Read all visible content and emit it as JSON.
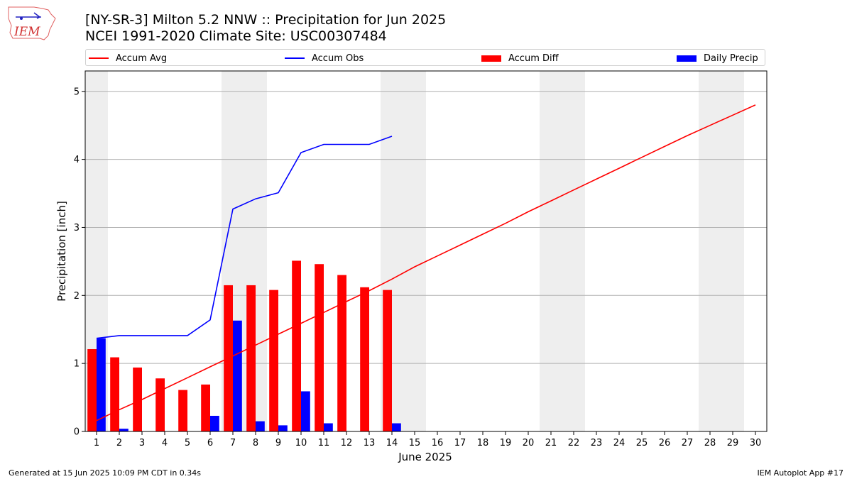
{
  "header": {
    "title": "[NY-SR-3] Milton 5.2 NNW :: Precipitation for Jun 2025",
    "subtitle": "NCEI 1991-2020 Climate Site: USC00307484",
    "logo_text": "IEM"
  },
  "legend": {
    "accum_avg": "Accum Avg",
    "accum_obs": "Accum Obs",
    "accum_diff": "Accum Diff",
    "daily_precip": "Daily Precip"
  },
  "footer": {
    "generated": "Generated at 15 Jun 2025 10:09 PM CDT in 0.34s",
    "app": "IEM Autoplot App #17"
  },
  "colors": {
    "accum_avg": "#ff0000",
    "accum_obs": "#0000ff",
    "accum_diff": "#ff0000",
    "daily_precip": "#0000ff",
    "weekend_shade": "#eeeeee",
    "grid": "#b0b0b0"
  },
  "chart_data": {
    "type": "bar",
    "xlabel": "June 2025",
    "ylabel": "Precipitation [inch]",
    "xlim": [
      0.5,
      30.5
    ],
    "ylim": [
      0,
      5.3
    ],
    "x_ticks": [
      1,
      2,
      3,
      4,
      5,
      6,
      7,
      8,
      9,
      10,
      11,
      12,
      13,
      14,
      15,
      16,
      17,
      18,
      19,
      20,
      21,
      22,
      23,
      24,
      25,
      26,
      27,
      28,
      29,
      30
    ],
    "y_ticks": [
      0,
      1,
      2,
      3,
      4,
      5
    ],
    "grid": "horizontal",
    "legend_position": "top",
    "shaded_weekend_days": [
      1,
      7,
      8,
      14,
      15,
      21,
      22,
      28,
      29
    ],
    "series": [
      {
        "name": "Accum Avg",
        "type": "line",
        "x": [
          1,
          2,
          3,
          4,
          5,
          6,
          7,
          8,
          9,
          10,
          11,
          12,
          13,
          14,
          15,
          16,
          17,
          18,
          19,
          20,
          21,
          22,
          23,
          24,
          25,
          26,
          27,
          28,
          29,
          30
        ],
        "values": [
          0.16,
          0.32,
          0.47,
          0.63,
          0.79,
          0.95,
          1.11,
          1.27,
          1.43,
          1.59,
          1.75,
          1.91,
          2.07,
          2.24,
          2.42,
          2.58,
          2.74,
          2.9,
          3.06,
          3.23,
          3.39,
          3.55,
          3.71,
          3.87,
          4.03,
          4.19,
          4.35,
          4.5,
          4.65,
          4.8
        ]
      },
      {
        "name": "Accum Obs",
        "type": "line",
        "x": [
          1,
          2,
          3,
          4,
          5,
          6,
          7,
          8,
          9,
          10,
          11,
          12,
          13,
          14
        ],
        "values": [
          1.37,
          1.41,
          1.41,
          1.41,
          1.41,
          1.64,
          3.27,
          3.42,
          3.51,
          4.1,
          4.22,
          4.22,
          4.22,
          4.34
        ]
      },
      {
        "name": "Accum Diff",
        "type": "bar",
        "x": [
          1,
          2,
          3,
          4,
          5,
          6,
          7,
          8,
          9,
          10,
          11,
          12,
          13,
          14
        ],
        "values": [
          1.21,
          1.09,
          0.94,
          0.78,
          0.61,
          0.69,
          2.15,
          2.15,
          2.08,
          2.51,
          2.46,
          2.3,
          2.12,
          2.08
        ]
      },
      {
        "name": "Daily Precip",
        "type": "bar",
        "x": [
          1,
          2,
          3,
          4,
          5,
          6,
          7,
          8,
          9,
          10,
          11,
          12,
          13,
          14
        ],
        "values": [
          1.37,
          0.04,
          0,
          0,
          0,
          0.23,
          1.63,
          0.15,
          0.09,
          0.59,
          0.12,
          0,
          0,
          0.12
        ]
      }
    ]
  }
}
